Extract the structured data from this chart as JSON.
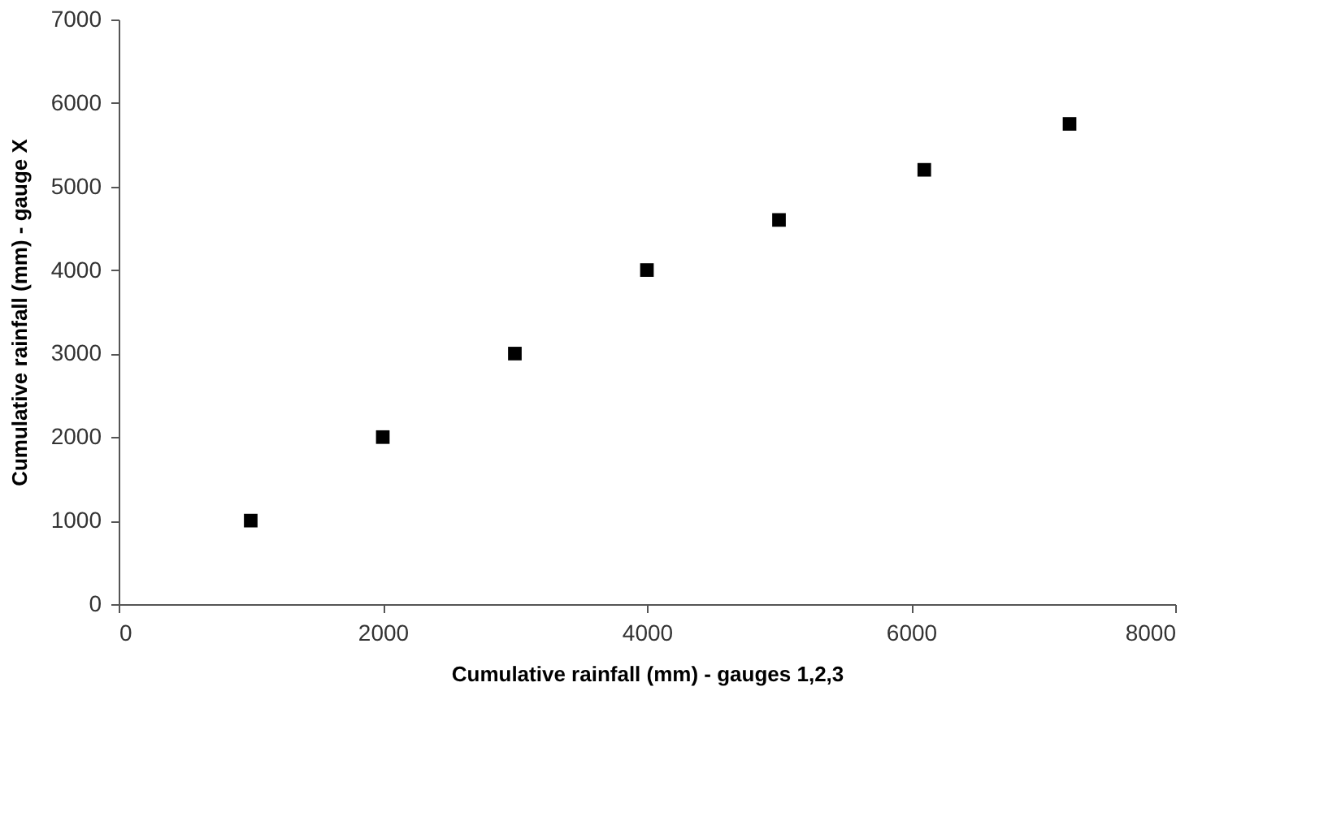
{
  "chart_data": {
    "type": "scatter",
    "xlabel": "Cumulative rainfall (mm) - gauges 1,2,3",
    "ylabel": "Cumulative rainfall (mm) - gauge X",
    "x": [
      1000,
      2000,
      3000,
      4000,
      5000,
      6100,
      7200
    ],
    "series": [
      {
        "color": "#000000",
        "values": [
          1000,
          2000,
          3000,
          4000,
          4600,
          5200,
          5750
        ]
      }
    ],
    "xlim": [
      0,
      8000
    ],
    "xticks": [
      0,
      2000,
      4000,
      6000,
      8000
    ],
    "ylim": [
      0,
      7000
    ],
    "yticks": [
      0,
      1000,
      2000,
      3000,
      4000,
      5000,
      6000,
      7000
    ],
    "marker": "square",
    "grid": false
  }
}
